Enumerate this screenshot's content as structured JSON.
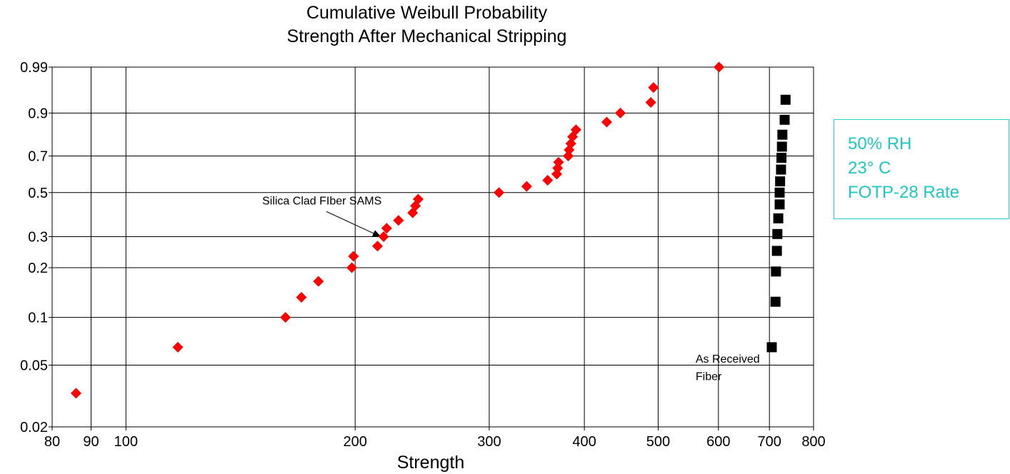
{
  "chart_data": {
    "type": "scatter",
    "title": "Cumulative Weibull Probability",
    "subtitle": "Strength After Mechanical Stripping",
    "xlabel": "Strength",
    "ylabel": "",
    "x_scale": "log",
    "y_scale": "weibull",
    "xlim": [
      80,
      800
    ],
    "ylim": [
      0.02,
      0.99
    ],
    "x_ticks": [
      80,
      90,
      100,
      200,
      300,
      400,
      500,
      600,
      700,
      800
    ],
    "x_tick_labels": [
      "80",
      "90",
      "100",
      "200",
      "300",
      "400",
      "500",
      "600",
      "700",
      "800"
    ],
    "y_ticks": [
      0.02,
      0.05,
      0.1,
      0.2,
      0.3,
      0.5,
      0.7,
      0.9,
      0.99
    ],
    "y_tick_labels": [
      "0.02",
      "0.05",
      "0.1",
      "0.2",
      "0.3",
      "0.5",
      "0.7",
      "0.9",
      "0.99"
    ],
    "grid": true,
    "series": [
      {
        "color": "#ff0000",
        "marker": "diamond",
        "points": [
          {
            "x": 86,
            "y": 0.033
          },
          {
            "x": 117,
            "y": 0.065
          },
          {
            "x": 162,
            "y": 0.1
          },
          {
            "x": 170,
            "y": 0.133
          },
          {
            "x": 179,
            "y": 0.166
          },
          {
            "x": 198,
            "y": 0.2
          },
          {
            "x": 199,
            "y": 0.233
          },
          {
            "x": 214,
            "y": 0.266
          },
          {
            "x": 218,
            "y": 0.3
          },
          {
            "x": 220,
            "y": 0.333
          },
          {
            "x": 228,
            "y": 0.366
          },
          {
            "x": 238,
            "y": 0.4
          },
          {
            "x": 240,
            "y": 0.433
          },
          {
            "x": 242,
            "y": 0.466
          },
          {
            "x": 309,
            "y": 0.5
          },
          {
            "x": 336,
            "y": 0.533
          },
          {
            "x": 358,
            "y": 0.566
          },
          {
            "x": 368,
            "y": 0.6
          },
          {
            "x": 369,
            "y": 0.633
          },
          {
            "x": 370,
            "y": 0.666
          },
          {
            "x": 381,
            "y": 0.7
          },
          {
            "x": 382,
            "y": 0.733
          },
          {
            "x": 384,
            "y": 0.766
          },
          {
            "x": 386,
            "y": 0.8
          },
          {
            "x": 390,
            "y": 0.833
          },
          {
            "x": 428,
            "y": 0.866
          },
          {
            "x": 446,
            "y": 0.9
          },
          {
            "x": 489,
            "y": 0.933
          },
          {
            "x": 493,
            "y": 0.966
          },
          {
            "x": 601,
            "y": 0.99
          }
        ]
      },
      {
        "color": "#000000",
        "marker": "square",
        "points": [
          {
            "x": 705,
            "y": 0.065
          },
          {
            "x": 713,
            "y": 0.125
          },
          {
            "x": 714,
            "y": 0.19
          },
          {
            "x": 716,
            "y": 0.25
          },
          {
            "x": 717,
            "y": 0.31
          },
          {
            "x": 719,
            "y": 0.375
          },
          {
            "x": 722,
            "y": 0.44
          },
          {
            "x": 722,
            "y": 0.5
          },
          {
            "x": 723,
            "y": 0.56
          },
          {
            "x": 725,
            "y": 0.625
          },
          {
            "x": 726,
            "y": 0.69
          },
          {
            "x": 727,
            "y": 0.75
          },
          {
            "x": 728,
            "y": 0.81
          },
          {
            "x": 733,
            "y": 0.875
          },
          {
            "x": 735,
            "y": 0.94
          }
        ]
      }
    ],
    "annotations": [
      {
        "text": "Silica Clad FIber SAMS",
        "x": 151,
        "y": 0.44,
        "arrow_to_x": 216,
        "arrow_to_y": 0.3
      },
      {
        "text": "As Received",
        "x": 560,
        "y": 0.052
      },
      {
        "text": "Fiber",
        "x": 560,
        "y": 0.04
      }
    ]
  },
  "conditions": {
    "line1": "50% RH",
    "line2": "23° C",
    "line3": "FOTP-28 Rate"
  }
}
